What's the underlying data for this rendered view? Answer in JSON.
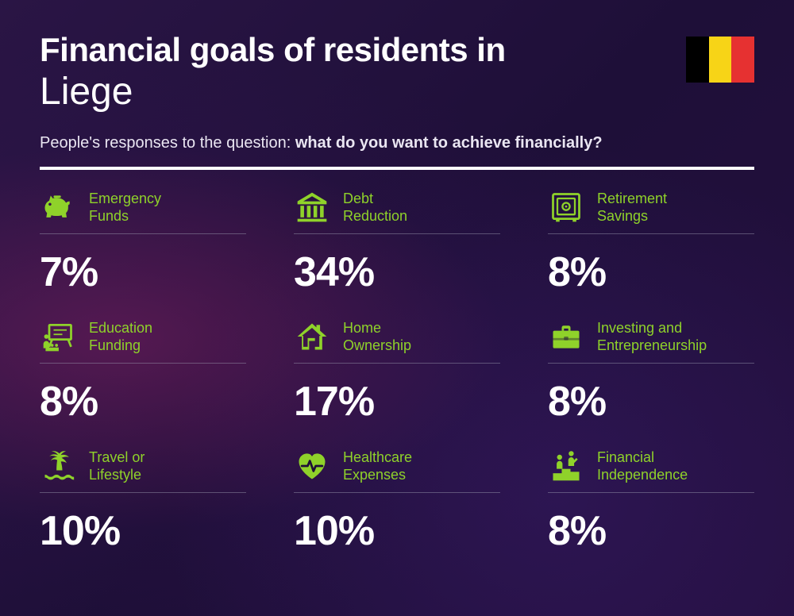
{
  "title_prefix": "Financial goals of residents in",
  "title_location": "Liege",
  "subtitle_lead": "People's responses to the question: ",
  "subtitle_bold": "what do you want to achieve financially?",
  "flag_colors": [
    "#000000",
    "#f7d417",
    "#e63131"
  ],
  "accent_color": "#8fd22a",
  "text_color": "#ffffff",
  "background_base": "#1e0f38",
  "divider_color": "#ffffff",
  "grid": {
    "columns": 3,
    "rows": 3
  },
  "cards": [
    {
      "label_line1": "Emergency",
      "label_line2": "Funds",
      "value": "7%",
      "icon": "piggy"
    },
    {
      "label_line1": "Debt",
      "label_line2": "Reduction",
      "value": "34%",
      "icon": "bank"
    },
    {
      "label_line1": "Retirement",
      "label_line2": "Savings",
      "value": "8%",
      "icon": "safe"
    },
    {
      "label_line1": "Education",
      "label_line2": "Funding",
      "value": "8%",
      "icon": "education"
    },
    {
      "label_line1": "Home",
      "label_line2": "Ownership",
      "value": "17%",
      "icon": "house"
    },
    {
      "label_line1": "Investing and",
      "label_line2": "Entrepreneurship",
      "value": "8%",
      "icon": "briefcase"
    },
    {
      "label_line1": "Travel or",
      "label_line2": "Lifestyle",
      "value": "10%",
      "icon": "island"
    },
    {
      "label_line1": "Healthcare",
      "label_line2": "Expenses",
      "value": "10%",
      "icon": "heart"
    },
    {
      "label_line1": "Financial",
      "label_line2": "Independence",
      "value": "8%",
      "icon": "podium"
    }
  ],
  "typography": {
    "title_fontsize": 42,
    "location_fontsize": 48,
    "subtitle_fontsize": 20,
    "label_fontsize": 18,
    "value_fontsize": 52,
    "value_weight": 800
  }
}
